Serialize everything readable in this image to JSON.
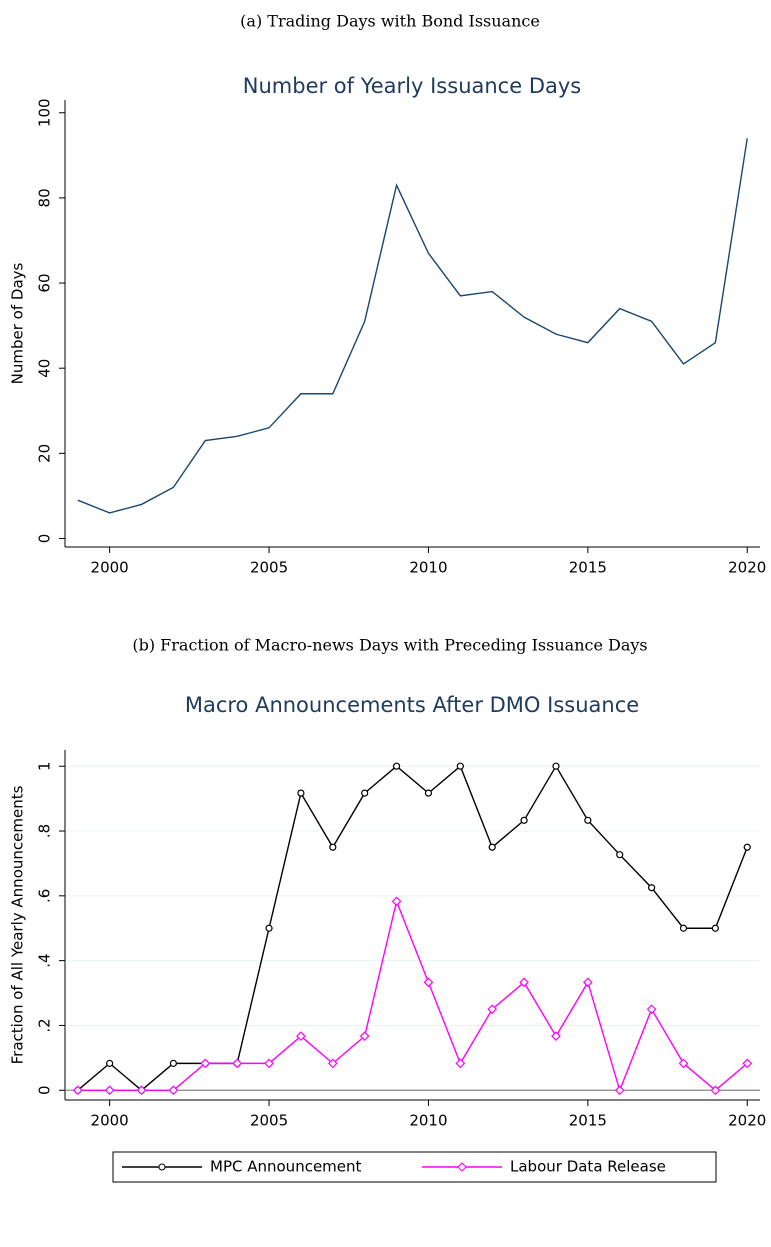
{
  "chart_data": [
    {
      "type": "line",
      "caption": "(a) Trading Days with Bond Issuance",
      "title": "Number of Yearly Issuance Days",
      "ylabel": "Number of Days",
      "x": [
        1999,
        2000,
        2001,
        2002,
        2003,
        2004,
        2005,
        2006,
        2007,
        2008,
        2009,
        2010,
        2011,
        2012,
        2013,
        2014,
        2015,
        2016,
        2017,
        2018,
        2019,
        2020
      ],
      "series": [
        {
          "color": "#1a476f",
          "values": [
            9,
            6,
            8,
            12,
            23,
            24,
            26,
            34,
            34,
            51,
            83,
            67,
            57,
            58,
            52,
            48,
            46,
            54,
            51,
            41,
            46,
            94
          ]
        }
      ],
      "xlim": [
        1998.6,
        2020.4
      ],
      "xticks": [
        2000,
        2005,
        2010,
        2015,
        2020
      ],
      "ylim": [
        -2,
        103
      ],
      "yticks": [
        0,
        20,
        40,
        60,
        80,
        100
      ],
      "grid": false
    },
    {
      "type": "line",
      "caption": "(b) Fraction of Macro-news Days with Preceding Issuance Days",
      "title": "Macro Announcements After DMO Issuance",
      "ylabel": "Fraction of All Yearly Announcements",
      "x": [
        1999,
        2000,
        2001,
        2002,
        2003,
        2004,
        2005,
        2006,
        2007,
        2008,
        2009,
        2010,
        2011,
        2012,
        2013,
        2014,
        2015,
        2016,
        2017,
        2018,
        2019,
        2020
      ],
      "series": [
        {
          "name": "MPC Announcement",
          "color": "#000000",
          "marker": "circle",
          "values": [
            0,
            0.083,
            0,
            0.083,
            0.083,
            0.083,
            0.5,
            0.917,
            0.75,
            0.917,
            1,
            0.917,
            1,
            0.75,
            0.833,
            1,
            0.833,
            0.727,
            0.625,
            0.5,
            0.5,
            0.75
          ]
        },
        {
          "name": "Labour Data Release",
          "color": "#ff00ff",
          "marker": "diamond",
          "values": [
            0,
            0,
            0,
            0,
            0.083,
            0.083,
            0.083,
            0.167,
            0.083,
            0.167,
            0.583,
            0.333,
            0.083,
            0.25,
            0.333,
            0.167,
            0.333,
            0,
            0.25,
            0.083,
            0,
            0.083
          ]
        }
      ],
      "xlim": [
        1998.6,
        2020.4
      ],
      "xticks": [
        2000,
        2005,
        2010,
        2015,
        2020
      ],
      "ylim": [
        -0.03,
        1.05
      ],
      "yticks": [
        0,
        {
          "value": 0.2,
          "label": ".2"
        },
        {
          "value": 0.4,
          "label": ".4"
        },
        {
          "value": 0.6,
          "label": ".6"
        },
        {
          "value": 0.8,
          "label": ".8"
        },
        1
      ],
      "reference_line": 0,
      "grid": true,
      "legend": "bottom"
    }
  ]
}
